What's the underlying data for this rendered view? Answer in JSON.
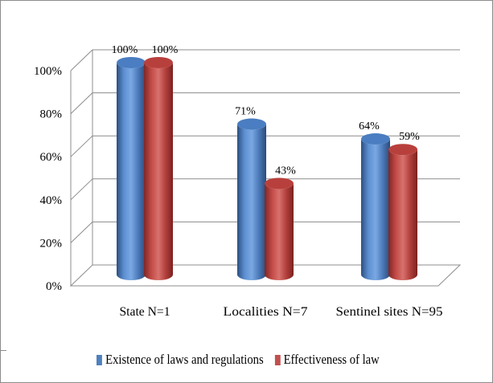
{
  "chart_data": {
    "type": "bar",
    "categories": [
      "State N=1",
      "Localities  N=7",
      "Sentinel sites N=95"
    ],
    "series": [
      {
        "name": "Existence of laws and regulations",
        "values": [
          100,
          71,
          64
        ],
        "labels": [
          "100%",
          "71%",
          "64%"
        ],
        "color": "#4f81bd"
      },
      {
        "name": "Effectiveness of law",
        "values": [
          100,
          43,
          59
        ],
        "labels": [
          "100%",
          "43%",
          "59%"
        ],
        "color": "#c0504d"
      }
    ],
    "y_ticks": [
      "0%",
      "20%",
      "40%",
      "60%",
      "80%",
      "100%"
    ],
    "ylim": [
      0,
      100
    ],
    "grid": true,
    "legend_position": "bottom",
    "style": "3d-cylinder"
  }
}
